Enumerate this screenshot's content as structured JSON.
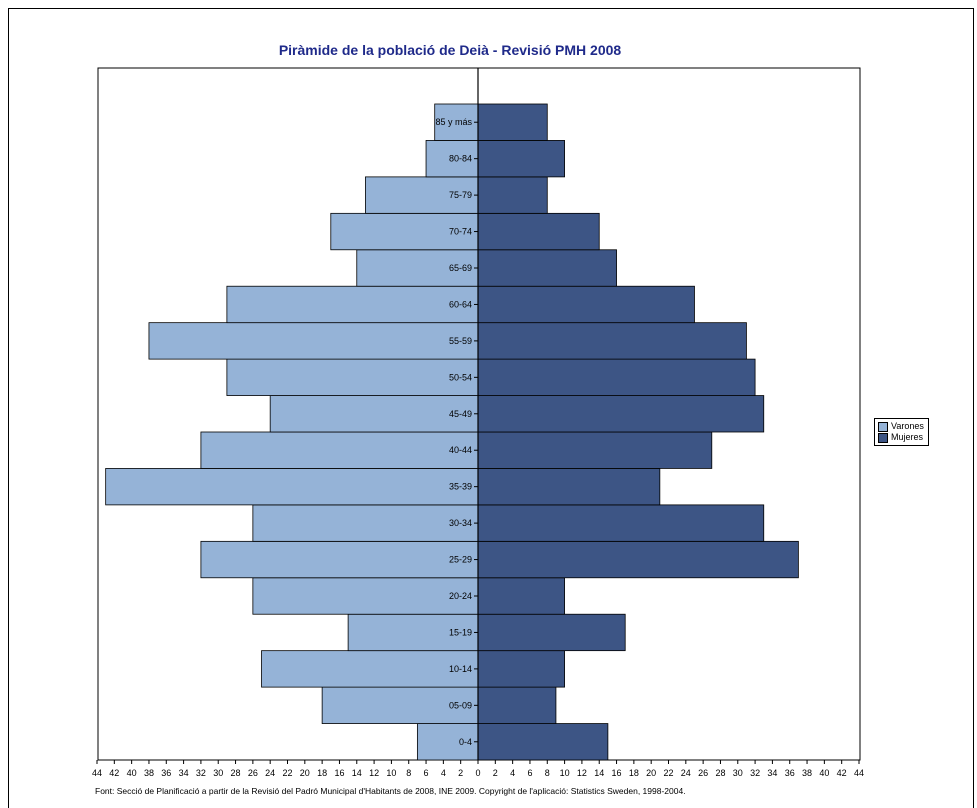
{
  "chart_data": {
    "type": "bar",
    "orientation": "horizontal-population-pyramid",
    "title": "Piràmide de la població de Deià - Revisió PMH 2008",
    "categories": [
      "0-4",
      "05-09",
      "10-14",
      "15-19",
      "20-24",
      "25-29",
      "30-34",
      "35-39",
      "40-44",
      "45-49",
      "50-54",
      "55-59",
      "60-64",
      "65-69",
      "70-74",
      "75-79",
      "80-84",
      "85 y más"
    ],
    "series": [
      {
        "name": "Varones",
        "color": "#95b3d7",
        "values": [
          7,
          18,
          25,
          15,
          26,
          32,
          26,
          43,
          32,
          24,
          29,
          38,
          29,
          14,
          17,
          13,
          6,
          5
        ]
      },
      {
        "name": "Mujeres",
        "color": "#3d5585",
        "values": [
          15,
          9,
          10,
          17,
          10,
          37,
          33,
          21,
          27,
          33,
          32,
          31,
          25,
          16,
          14,
          8,
          10,
          8
        ]
      }
    ],
    "xlim": [
      -44,
      44
    ],
    "x_tick_labels": [
      "44",
      "42",
      "40",
      "38",
      "36",
      "34",
      "32",
      "30",
      "28",
      "26",
      "24",
      "22",
      "20",
      "18",
      "16",
      "14",
      "12",
      "10",
      "8",
      "6",
      "4",
      "2",
      "0",
      "2",
      "4",
      "6",
      "8",
      "10",
      "12",
      "14",
      "16",
      "18",
      "20",
      "22",
      "24",
      "26",
      "28",
      "30",
      "32",
      "34",
      "36",
      "38",
      "40",
      "42",
      "44"
    ],
    "grid": false,
    "legend_position": "right"
  },
  "legend": {
    "varones": "Varones",
    "mujeres": "Mujeres"
  },
  "source": "Font: Secció de Planificació a partir de la Revisió del Padró Municipal d'Habitants de 2008, INE 2009. Copyright de l'aplicació: Statistics Sweden, 1998-2004."
}
